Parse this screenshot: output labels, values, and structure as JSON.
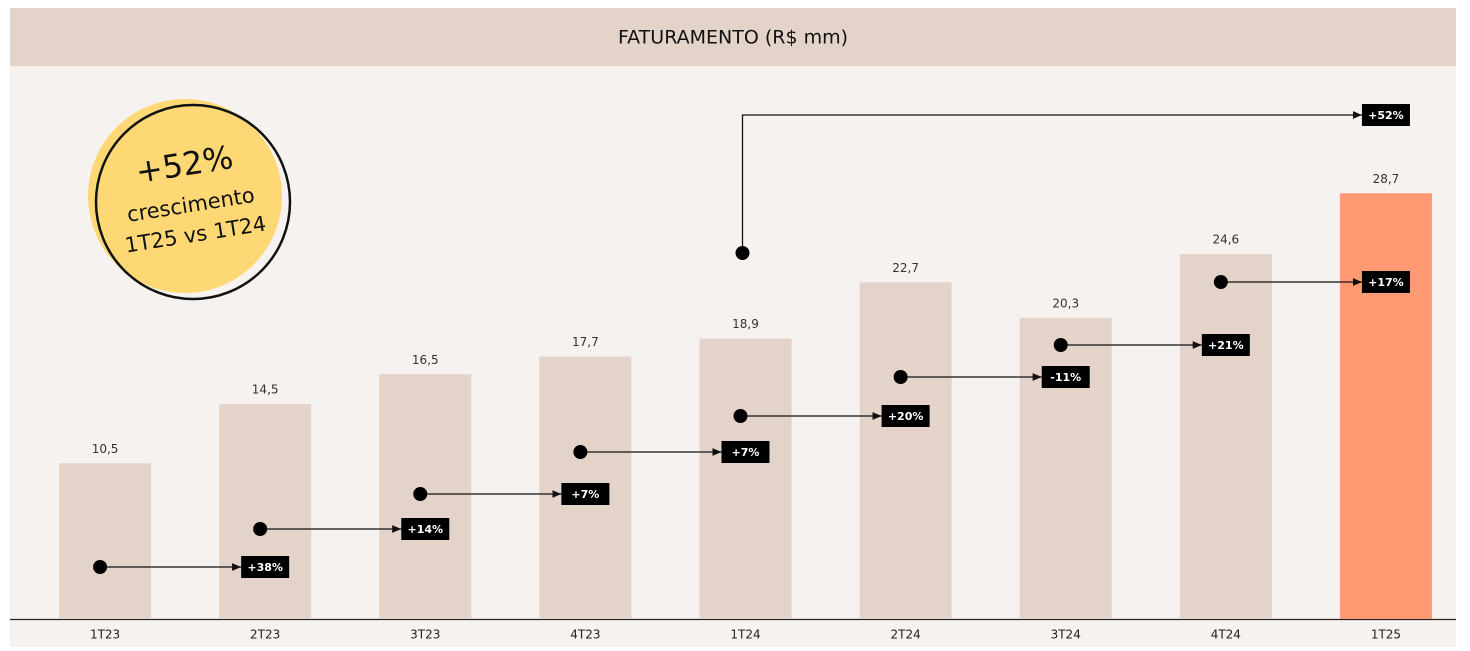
{
  "chart_data": {
    "type": "bar",
    "title": "FATURAMENTO (R$ mm)",
    "categories": [
      "1T23",
      "2T23",
      "3T23",
      "4T23",
      "1T24",
      "2T24",
      "3T24",
      "4T24",
      "1T25"
    ],
    "values": [
      10.5,
      14.5,
      16.5,
      17.7,
      18.9,
      22.7,
      20.3,
      24.6,
      28.7
    ],
    "value_labels": [
      "10,5",
      "14,5",
      "16,5",
      "17,7",
      "18,9",
      "22,7",
      "20,3",
      "24,6",
      "28,7"
    ],
    "colors": [
      "#e3d3c8",
      "#e3d3c8",
      "#e3d3c8",
      "#e3d3c8",
      "#e3d3c8",
      "#e3d3c8",
      "#e3d3c8",
      "#e3d3c8",
      "#ff9a72"
    ],
    "ylim": [
      0,
      30
    ],
    "growth": {
      "values": [
        38,
        14,
        7,
        7,
        20,
        -11,
        21,
        17
      ],
      "value_labels": [
        "+38%",
        "+14%",
        "+7%",
        "+7%",
        "+20%",
        "-11%",
        "+21%",
        "+17%"
      ]
    },
    "yoy": {
      "value": 52,
      "label": "+52%"
    },
    "badge": {
      "headline": "+52%",
      "line1": "crescimento",
      "line2": "1T25 vs 1T24"
    }
  }
}
